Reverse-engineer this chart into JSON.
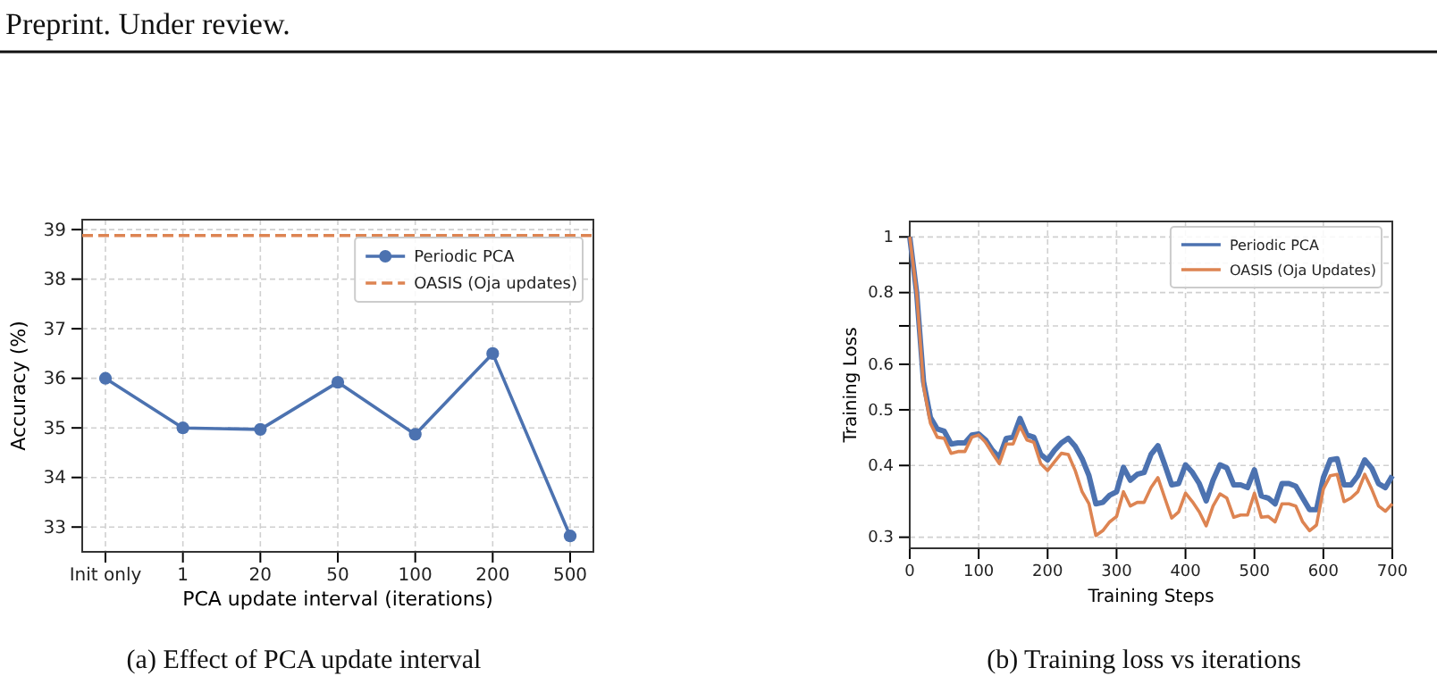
{
  "chart_data": [
    {
      "type": "line",
      "xlabel": "PCA update interval (iterations)",
      "ylabel": "Accuracy (%)",
      "categories": [
        "Init only",
        "1",
        "20",
        "50",
        "100",
        "200",
        "500"
      ],
      "series": [
        {
          "name": "Periodic PCA",
          "color": "#4c72b0",
          "values": [
            36.0,
            35.0,
            34.97,
            35.92,
            34.87,
            36.5,
            32.82
          ]
        }
      ],
      "ref_lines": [
        {
          "axis": "y",
          "value": 38.88,
          "label": "OASIS (Oja updates)",
          "color": "#dd8452",
          "line_style": "dashed"
        }
      ],
      "ylim": [
        32.5,
        39.2
      ],
      "yticks": [
        33,
        34,
        35,
        36,
        37,
        38,
        39
      ],
      "grid": true,
      "legend": "top right",
      "marker": "circle",
      "annotations": [
        "Preprint. Under review.",
        "(a) Effect of PCA update interval"
      ]
    },
    {
      "type": "line",
      "xlabel": "Training Steps",
      "ylabel": "Training Loss",
      "log": true,
      "x": [
        0,
        10,
        20,
        30,
        40,
        50,
        60,
        70,
        80,
        90,
        100,
        110,
        120,
        130,
        140,
        150,
        160,
        170,
        180,
        190,
        200,
        210,
        220,
        230,
        240,
        250,
        260,
        270,
        280,
        290,
        300,
        310,
        320,
        330,
        340,
        350,
        360,
        370,
        380,
        390,
        400,
        410,
        420,
        430,
        440,
        450,
        460,
        470,
        480,
        490,
        500,
        510,
        520,
        530,
        540,
        550,
        560,
        570,
        580,
        590,
        600,
        610,
        620,
        630,
        640,
        650,
        660,
        670,
        680,
        690,
        700
      ],
      "series": [
        {
          "name": "Periodic PCA",
          "color": "#4c72b0",
          "values": [
            1.0,
            0.8,
            0.56,
            0.485,
            0.463,
            0.459,
            0.436,
            0.438,
            0.438,
            0.452,
            0.454,
            0.443,
            0.425,
            0.413,
            0.446,
            0.448,
            0.483,
            0.452,
            0.448,
            0.418,
            0.409,
            0.425,
            0.438,
            0.446,
            0.432,
            0.411,
            0.384,
            0.343,
            0.345,
            0.355,
            0.36,
            0.397,
            0.377,
            0.386,
            0.389,
            0.418,
            0.433,
            0.401,
            0.37,
            0.372,
            0.401,
            0.389,
            0.372,
            0.347,
            0.377,
            0.401,
            0.396,
            0.37,
            0.37,
            0.366,
            0.393,
            0.354,
            0.351,
            0.343,
            0.372,
            0.372,
            0.368,
            0.351,
            0.335,
            0.335,
            0.381,
            0.409,
            0.411,
            0.37,
            0.37,
            0.384,
            0.409,
            0.396,
            0.372,
            0.366,
            0.384
          ]
        },
        {
          "name": "OASIS (Oja Updates)",
          "color": "#dd8452",
          "values": [
            1.0,
            0.8,
            0.55,
            0.474,
            0.448,
            0.446,
            0.42,
            0.423,
            0.423,
            0.448,
            0.452,
            0.439,
            0.42,
            0.403,
            0.436,
            0.436,
            0.468,
            0.443,
            0.439,
            0.403,
            0.392,
            0.406,
            0.42,
            0.418,
            0.392,
            0.36,
            0.343,
            0.302,
            0.308,
            0.319,
            0.326,
            0.36,
            0.34,
            0.345,
            0.345,
            0.366,
            0.381,
            0.351,
            0.324,
            0.332,
            0.358,
            0.346,
            0.332,
            0.314,
            0.34,
            0.357,
            0.351,
            0.325,
            0.328,
            0.328,
            0.358,
            0.325,
            0.326,
            0.319,
            0.343,
            0.343,
            0.34,
            0.319,
            0.308,
            0.315,
            0.364,
            0.384,
            0.386,
            0.346,
            0.351,
            0.36,
            0.386,
            0.364,
            0.34,
            0.333,
            0.343
          ]
        }
      ],
      "xlim": [
        0,
        700
      ],
      "xticks": [
        0,
        100,
        200,
        300,
        400,
        500,
        600,
        700
      ],
      "ylim": [
        0.287,
        1.064
      ],
      "yticks": [
        0.3,
        0.4,
        0.5,
        0.6,
        {
          "value": 0.7,
          "label": null
        },
        0.8,
        {
          "value": 0.9,
          "label": null
        },
        1
      ],
      "grid": true,
      "legend": "top right",
      "annotations": [
        "(b) Training loss vs iterations"
      ]
    }
  ]
}
